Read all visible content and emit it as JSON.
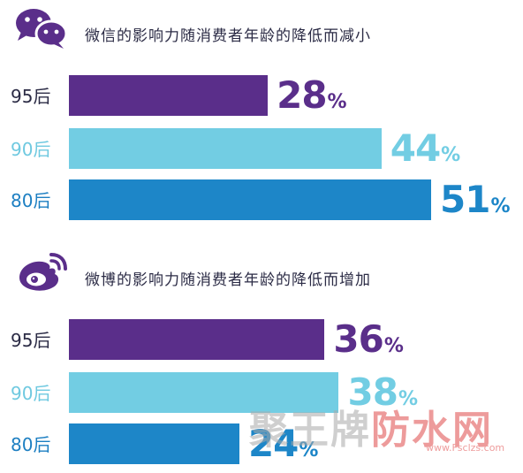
{
  "colors": {
    "title": "#2b2b45",
    "post95": "#5a2e8a",
    "post90": "#72cde3",
    "post80": "#1d86c8",
    "label95": "#2b2b45",
    "label90": "#6fc9e0",
    "label80": "#1d7fc2",
    "watermark_red": "#e04a4a",
    "watermark_gray": "#a9a9a9"
  },
  "icons": {
    "wechat": "wechat-logo-icon",
    "weibo": "weibo-logo-icon"
  },
  "watermark": {
    "text": "聚王牌防水网",
    "url": "www.Fsclzs.com"
  },
  "chart_data": [
    {
      "type": "bar",
      "orientation": "horizontal",
      "title": "微信的影响力随消费者年龄的降低而减小",
      "categories": [
        "95后",
        "90后",
        "80后"
      ],
      "values": [
        28,
        44,
        51
      ],
      "value_labels": [
        "28",
        "44",
        "51"
      ],
      "unit": "%",
      "xlim": [
        0,
        70
      ],
      "grid": false,
      "legend": "none"
    },
    {
      "type": "bar",
      "orientation": "horizontal",
      "title": "微博的影响力随消费者年龄的降低而增加",
      "categories": [
        "95后",
        "90后",
        "80后"
      ],
      "values": [
        36,
        38,
        24
      ],
      "value_labels": [
        "36",
        "38",
        "24"
      ],
      "unit": "%",
      "xlim": [
        0,
        70
      ],
      "grid": false,
      "legend": "none"
    }
  ]
}
